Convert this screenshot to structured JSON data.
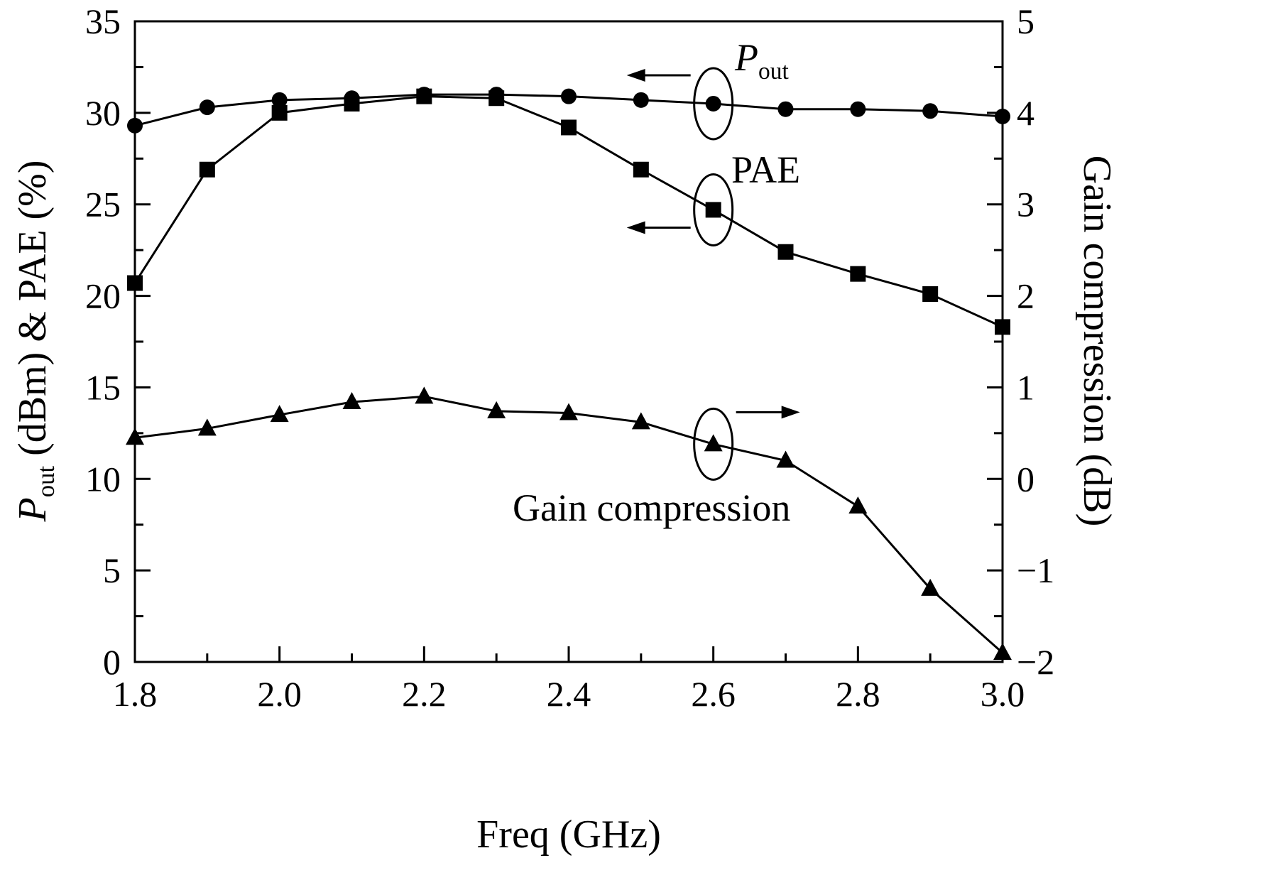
{
  "figure": {
    "background": "#ffffff",
    "line_color": "#000000"
  },
  "labels": {
    "x": "Freq (GHz)",
    "y_left_italic": "P",
    "y_left_sub": "out",
    "y_left_rest": " (dBm) & PAE (%)",
    "y_right": "Gain compression (dB)"
  },
  "annotations": {
    "pout_italic": "P",
    "pout_sub": "out",
    "pae": "PAE",
    "gain": "Gain compression"
  },
  "chart_data": {
    "type": "line",
    "title": "",
    "xlabel": "Freq (GHz)",
    "ylabel_left": "Pout (dBm) & PAE (%)",
    "ylabel_right": "Gain compression (dB)",
    "grid": false,
    "legend": "inline-callouts",
    "x_range": [
      1.8,
      3.0
    ],
    "y_left_range": [
      0,
      35
    ],
    "y_right_range": [
      -2,
      5
    ],
    "x": [
      1.8,
      1.9,
      2.0,
      2.1,
      2.2,
      2.3,
      2.4,
      2.5,
      2.6,
      2.7,
      2.8,
      2.9,
      3.0
    ],
    "x_major_ticks": [
      1.8,
      2.0,
      2.2,
      2.4,
      2.6,
      2.8,
      3.0
    ],
    "x_major_tick_labels": [
      "1.8",
      "2.0",
      "2.2",
      "2.4",
      "2.6",
      "2.8",
      "3.0"
    ],
    "x_minor_ticks": [
      1.9,
      2.1,
      2.3,
      2.5,
      2.7,
      2.9
    ],
    "y_left_ticks": [
      0,
      5,
      10,
      15,
      20,
      25,
      30,
      35
    ],
    "y_left_tick_labels": [
      "0",
      "5",
      "10",
      "15",
      "20",
      "25",
      "30",
      "35"
    ],
    "y_left_minor_ticks": [
      2.5,
      7.5,
      12.5,
      17.5,
      22.5,
      27.5,
      32.5
    ],
    "y_right_ticks": [
      -2,
      -1,
      0,
      1,
      2,
      3,
      4,
      5
    ],
    "y_right_tick_labels": [
      "−2",
      "−1",
      "0",
      "1",
      "2",
      "3",
      "4",
      "5"
    ],
    "y_right_minor_ticks": [
      -1.5,
      -0.5,
      0.5,
      1.5,
      2.5,
      3.5,
      4.5
    ],
    "series": [
      {
        "name": "Pout",
        "axis": "left",
        "marker": "circle",
        "units": "dBm",
        "values": [
          29.3,
          30.3,
          30.7,
          30.8,
          31.0,
          31.0,
          30.9,
          30.7,
          30.5,
          30.2,
          30.2,
          30.1,
          29.8
        ]
      },
      {
        "name": "PAE",
        "axis": "left",
        "marker": "square",
        "units": "%",
        "values": [
          20.7,
          26.9,
          30.0,
          30.5,
          30.9,
          30.8,
          29.2,
          26.9,
          24.7,
          22.4,
          21.2,
          20.1,
          18.3
        ]
      },
      {
        "name": "Gain compression",
        "axis": "right",
        "marker": "triangle",
        "units": "dB",
        "values": [
          0.45,
          0.55,
          0.7,
          0.84,
          0.9,
          0.74,
          0.72,
          0.62,
          0.38,
          0.2,
          -0.3,
          -1.2,
          -1.9
        ]
      }
    ]
  }
}
